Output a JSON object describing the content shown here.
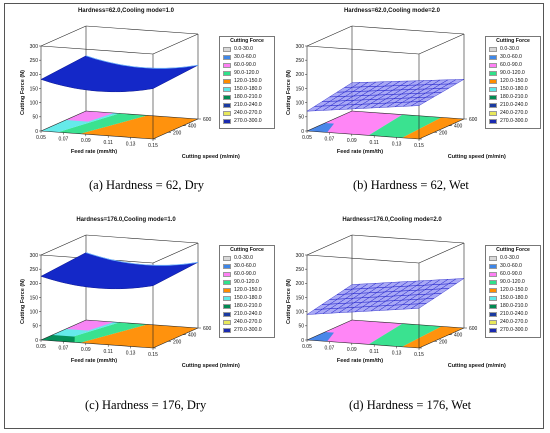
{
  "legend_title": "Cutting Force",
  "legend_ranges": [
    "0.0-30.0",
    "30.0-60.0",
    "60.0-90.0",
    "90.0-120.0",
    "120.0-150.0",
    "150.0-180.0",
    "180.0-210.0",
    "210.0-240.0",
    "240.0-270.0",
    "270.0-300.0"
  ],
  "legend_colors": [
    "#d8d8d8",
    "#3f87e8",
    "#ff7ff5",
    "#2fe08a",
    "#ff8c00",
    "#5de9e9",
    "#008a52",
    "#1a3aa0",
    "#e8e85a",
    "#1a2ab0"
  ],
  "axis_labels": {
    "x": "Feed rate (mm/th)",
    "y": "Cutting speed (m/min)",
    "z": "Cutting Force (N)"
  },
  "x_ticks": [
    "0.05",
    "0.07",
    "0.09",
    "0.11",
    "0.13",
    "0.15"
  ],
  "y_ticks": [
    "0",
    "200",
    "400",
    "600"
  ],
  "z_ticks": [
    "0",
    "50",
    "100",
    "150",
    "200",
    "250",
    "300"
  ],
  "chart_data": [
    {
      "type": "surface",
      "title": "Hardness=62.0,Cooling mode=1.0",
      "caption": "(a)  Hardness = 62, Dry",
      "xlabel": "Feed rate (mm/th)",
      "ylabel": "Cutting speed (m/min)",
      "zlabel": "Cutting Force (N)",
      "xlim": [
        0.05,
        0.15
      ],
      "ylim": [
        0,
        600
      ],
      "zlim": [
        0,
        300
      ],
      "surface_style": "smooth",
      "surface_z": {
        "x0y0": 182,
        "x1y0": 178,
        "x0y1": 195,
        "x1y1": 190,
        "sag": 25
      }
    },
    {
      "type": "surface",
      "title": "Hardness=62.0,Cooling mode=2.0",
      "caption": "(b)  Hardness = 62, Wet",
      "xlabel": "Feed rate (mm/th)",
      "ylabel": "Cutting speed (m/min)",
      "zlabel": "Cutting Force (N)",
      "xlim": [
        0.05,
        0.15
      ],
      "ylim": [
        0,
        600
      ],
      "zlim": [
        0,
        300
      ],
      "surface_style": "mesh",
      "surface_z": {
        "x0y0": 70,
        "x1y0": 118,
        "x0y1": 100,
        "x1y1": 140,
        "sag": 0
      }
    },
    {
      "type": "surface",
      "title": "Hardness=176.0,Cooling mode=1.0",
      "caption": "(c)  Hardness = 176, Dry",
      "xlabel": "Feed rate (mm/th)",
      "ylabel": "Cutting speed (m/min)",
      "zlabel": "Cutting Force (N)",
      "xlim": [
        0.05,
        0.15
      ],
      "ylim": [
        0,
        600
      ],
      "zlim": [
        0,
        300
      ],
      "surface_style": "smooth",
      "surface_z": {
        "x0y0": 225,
        "x1y0": 220,
        "x0y1": 238,
        "x1y1": 232,
        "sag": 25
      }
    },
    {
      "type": "surface",
      "title": "Hardness=176.0,Cooling mode=2.0",
      "caption": "(d)  Hardness = 176, Wet",
      "xlabel": "Feed rate (mm/th)",
      "ylabel": "Cutting speed (m/min)",
      "zlabel": "Cutting Force (N)",
      "xlim": [
        0.05,
        0.15
      ],
      "ylim": [
        0,
        600
      ],
      "zlim": [
        0,
        300
      ],
      "surface_style": "mesh",
      "surface_z": {
        "x0y0": 90,
        "x1y0": 140,
        "x0y1": 125,
        "x1y1": 175,
        "sag": 0
      }
    }
  ]
}
